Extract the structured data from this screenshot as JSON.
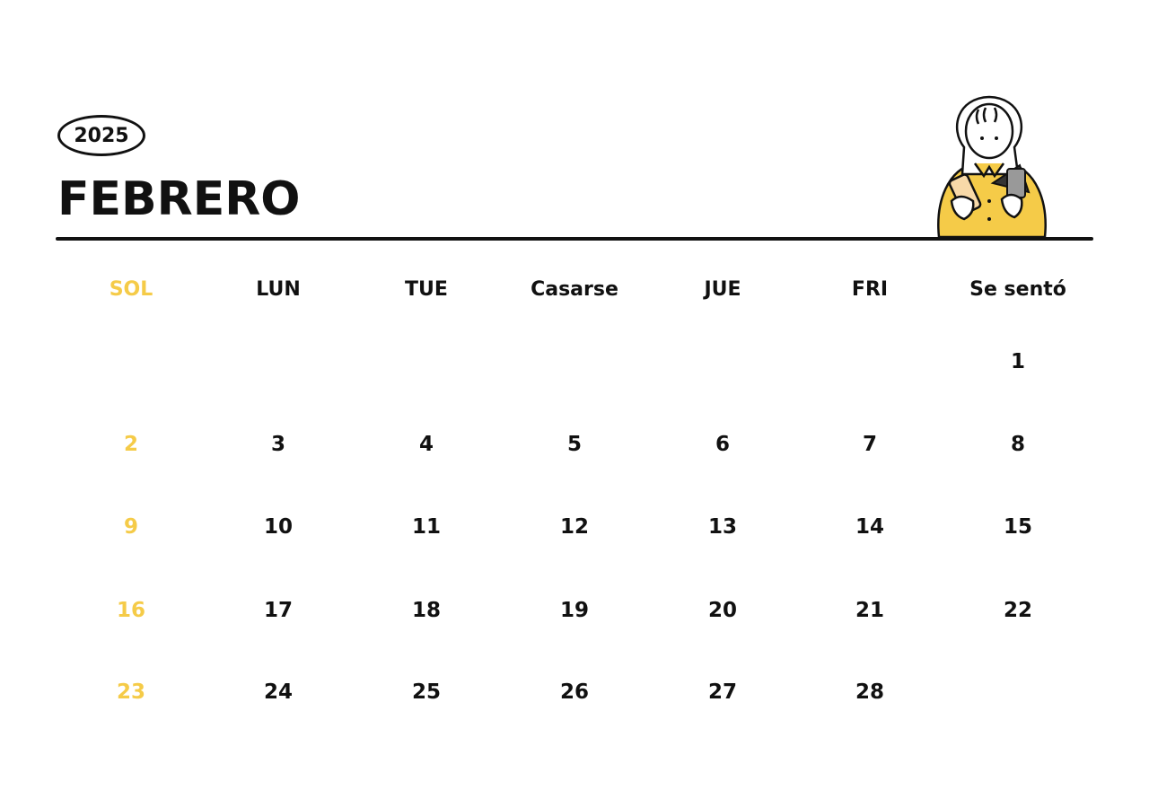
{
  "header": {
    "year": "2025",
    "month": "FEBRERO"
  },
  "colors": {
    "accent": "#F5CB48",
    "text": "#111111"
  },
  "illustration": "girl-holding-phone-and-cards",
  "weekdays": [
    "SOL",
    "LUN",
    "TUE",
    "Casarse",
    "JUE",
    "FRI",
    "Se sentó"
  ],
  "weeks": [
    [
      "",
      "",
      "",
      "",
      "",
      "",
      "1"
    ],
    [
      "2",
      "3",
      "4",
      "5",
      "6",
      "7",
      "8"
    ],
    [
      "9",
      "10",
      "11",
      "12",
      "13",
      "14",
      "15"
    ],
    [
      "16",
      "17",
      "18",
      "19",
      "20",
      "21",
      "22"
    ],
    [
      "23",
      "24",
      "25",
      "26",
      "27",
      "28",
      ""
    ]
  ]
}
